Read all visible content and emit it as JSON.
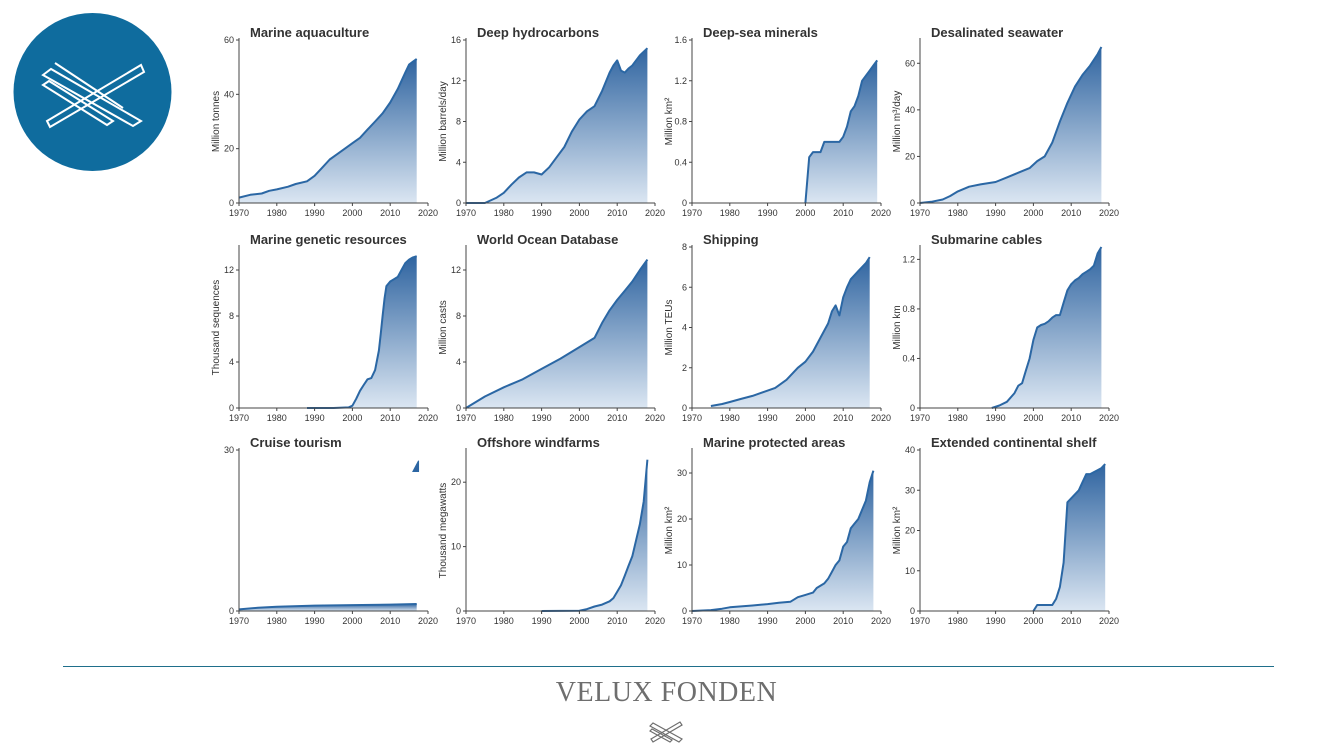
{
  "brand": {
    "name": "VELUX FONDEN",
    "logo_icon": "crossed-lines-icon",
    "logo_color": "#0f6c9e",
    "divider_color": "#1f6f8b",
    "name_color": "#6e6e6e"
  },
  "chart_style": {
    "line_color": "#2b67a4",
    "fill_top_color": "#2f64a0",
    "fill_bottom_color": "#dbe6f2",
    "axis_color": "#444444"
  },
  "chart_data": [
    {
      "type": "area",
      "title": "Marine aquaculture",
      "ylabel": "Million tonnes",
      "xlim": [
        1970,
        2020
      ],
      "ylim": [
        0,
        60
      ],
      "xticks": [
        1970,
        1980,
        1990,
        2000,
        2010,
        2020
      ],
      "yticks": [
        0,
        20,
        40,
        60
      ],
      "series": [
        {
          "x": [
            1970,
            1973,
            1976,
            1978,
            1980,
            1983,
            1985,
            1988,
            1990,
            1992,
            1994,
            1996,
            1998,
            2000,
            2002,
            2004,
            2006,
            2008,
            2010,
            2012,
            2013,
            2014,
            2015,
            2016,
            2017
          ],
          "y": [
            2,
            3,
            3.5,
            4.5,
            5,
            6,
            7,
            8,
            10,
            13,
            16,
            18,
            20,
            22,
            24,
            27,
            30,
            33,
            37,
            42,
            45,
            48,
            51,
            52,
            53
          ]
        }
      ]
    },
    {
      "type": "area",
      "title": "Deep hydrocarbons",
      "ylabel": "Million barrels/day",
      "xlim": [
        1970,
        2020
      ],
      "ylim": [
        0,
        16
      ],
      "xticks": [
        1970,
        1980,
        1990,
        2000,
        2010,
        2020
      ],
      "yticks": [
        0,
        4,
        8,
        12,
        16
      ],
      "series": [
        {
          "x": [
            1970,
            1975,
            1978,
            1980,
            1982,
            1984,
            1986,
            1988,
            1990,
            1992,
            1994,
            1996,
            1998,
            2000,
            2002,
            2004,
            2006,
            2008,
            2009,
            2010,
            2011,
            2012,
            2013,
            2014,
            2016,
            2018
          ],
          "y": [
            0,
            0,
            0.5,
            1,
            1.8,
            2.5,
            3,
            3,
            2.8,
            3.5,
            4.5,
            5.5,
            7,
            8.2,
            9,
            9.5,
            11,
            12.8,
            13.5,
            14,
            13,
            12.8,
            13.2,
            13.5,
            14.5,
            15.2
          ]
        }
      ]
    },
    {
      "type": "area",
      "title": "Deep-sea minerals",
      "ylabel": "Million km²",
      "xlim": [
        1970,
        2020
      ],
      "ylim": [
        0,
        1.6
      ],
      "xticks": [
        1970,
        1980,
        1990,
        2000,
        2010,
        2020
      ],
      "yticks": [
        0,
        0.4,
        0.8,
        1.2,
        1.6
      ],
      "series": [
        {
          "x": [
            2000,
            2001,
            2002,
            2004,
            2005,
            2006,
            2008,
            2009,
            2010,
            2011,
            2012,
            2013,
            2014,
            2015,
            2016,
            2017,
            2018,
            2019
          ],
          "y": [
            0,
            0.45,
            0.5,
            0.5,
            0.6,
            0.6,
            0.6,
            0.6,
            0.65,
            0.75,
            0.9,
            0.95,
            1.05,
            1.2,
            1.25,
            1.3,
            1.35,
            1.4
          ]
        }
      ]
    },
    {
      "type": "area",
      "title": "Desalinated seawater",
      "ylabel": "Million m³/day",
      "xlim": [
        1970,
        2020
      ],
      "ylim": [
        0,
        70
      ],
      "xticks": [
        1970,
        1980,
        1990,
        2000,
        2010,
        2020
      ],
      "yticks": [
        0,
        20,
        40,
        60
      ],
      "series": [
        {
          "x": [
            1970,
            1973,
            1976,
            1978,
            1980,
            1983,
            1986,
            1990,
            1993,
            1996,
            1999,
            2001,
            2003,
            2005,
            2007,
            2009,
            2011,
            2013,
            2015,
            2017,
            2018
          ],
          "y": [
            0,
            0.5,
            1.5,
            3,
            5,
            7,
            8,
            9,
            11,
            13,
            15,
            18,
            20,
            26,
            35,
            43,
            50,
            55,
            59,
            64,
            67
          ]
        }
      ]
    },
    {
      "type": "area",
      "title": "Marine genetic resources",
      "ylabel": "Thousand sequences",
      "xlim": [
        1970,
        2020
      ],
      "ylim": [
        0,
        14
      ],
      "xticks": [
        1970,
        1980,
        1990,
        2000,
        2010,
        2020
      ],
      "yticks": [
        0,
        4,
        8,
        12
      ],
      "series": [
        {
          "x": [
            1988,
            1995,
            1999,
            2000,
            2001,
            2002,
            2003,
            2004,
            2005,
            2006,
            2007,
            2007.5,
            2008,
            2008.5,
            2009,
            2010,
            2011,
            2012,
            2013,
            2014,
            2015,
            2016,
            2017
          ],
          "y": [
            0,
            0,
            0.05,
            0.2,
            0.8,
            1.5,
            2,
            2.5,
            2.6,
            3.3,
            5,
            6.5,
            8,
            9.5,
            10.6,
            11,
            11.2,
            11.4,
            12,
            12.6,
            12.9,
            13.1,
            13.2
          ]
        }
      ]
    },
    {
      "type": "area",
      "title": "World Ocean Database",
      "ylabel": "Million casts",
      "xlim": [
        1970,
        2020
      ],
      "ylim": [
        0,
        14
      ],
      "xticks": [
        1970,
        1980,
        1990,
        2000,
        2010,
        2020
      ],
      "yticks": [
        0,
        4,
        8,
        12
      ],
      "series": [
        {
          "x": [
            1970,
            1975,
            1980,
            1985,
            1990,
            1995,
            2000,
            2004,
            2006,
            2008,
            2010,
            2012,
            2014,
            2016,
            2018
          ],
          "y": [
            0,
            1,
            1.8,
            2.5,
            3.4,
            4.3,
            5.3,
            6.1,
            7.4,
            8.5,
            9.4,
            10.2,
            11,
            12,
            12.9
          ]
        }
      ]
    },
    {
      "type": "area",
      "title": "Shipping",
      "ylabel": "Million TEUs",
      "xlim": [
        1970,
        2020
      ],
      "ylim": [
        0,
        8
      ],
      "xticks": [
        1970,
        1980,
        1990,
        2000,
        2010,
        2020
      ],
      "yticks": [
        0,
        2,
        4,
        6,
        8
      ],
      "series": [
        {
          "x": [
            1975,
            1978,
            1980,
            1983,
            1986,
            1989,
            1992,
            1995,
            1998,
            2000,
            2002,
            2004,
            2006,
            2007,
            2008,
            2009,
            2010,
            2011,
            2012,
            2013,
            2014,
            2015,
            2016,
            2017
          ],
          "y": [
            0.1,
            0.2,
            0.3,
            0.45,
            0.6,
            0.8,
            1.0,
            1.4,
            2.0,
            2.3,
            2.8,
            3.5,
            4.2,
            4.8,
            5.1,
            4.6,
            5.5,
            6.0,
            6.4,
            6.6,
            6.8,
            7.0,
            7.2,
            7.5
          ]
        }
      ]
    },
    {
      "type": "area",
      "title": "Submarine cables",
      "ylabel": "Million km",
      "xlim": [
        1970,
        2020
      ],
      "ylim": [
        0,
        1.3
      ],
      "xticks": [
        1970,
        1980,
        1990,
        2000,
        2010,
        2020
      ],
      "yticks": [
        0,
        0.4,
        0.8,
        1.2
      ],
      "series": [
        {
          "x": [
            1989,
            1991,
            1993,
            1995,
            1996,
            1997,
            1998,
            1999,
            2000,
            2001,
            2002,
            2003,
            2004,
            2005,
            2006,
            2007,
            2008,
            2009,
            2010,
            2011,
            2012,
            2013,
            2014,
            2015,
            2016,
            2017,
            2018
          ],
          "y": [
            0,
            0.02,
            0.05,
            0.12,
            0.18,
            0.2,
            0.3,
            0.4,
            0.55,
            0.65,
            0.67,
            0.68,
            0.7,
            0.73,
            0.75,
            0.75,
            0.85,
            0.95,
            1.0,
            1.03,
            1.05,
            1.08,
            1.1,
            1.12,
            1.15,
            1.25,
            1.3
          ]
        }
      ]
    },
    {
      "type": "area",
      "title": "Cruise tourism",
      "ylabel": "",
      "xlim": [
        1970,
        2020
      ],
      "ylim": [
        0,
        30
      ],
      "xticks": [
        1970,
        1980,
        1990,
        2000,
        2010,
        2020
      ],
      "yticks": [
        0,
        30
      ],
      "series": [
        {
          "x": [
            1970,
            1975,
            1980,
            1990,
            2000,
            2010,
            2017
          ],
          "y": [
            0.3,
            0.6,
            0.8,
            1.0,
            1.1,
            1.2,
            1.3
          ]
        }
      ],
      "fragment": {
        "x": [
          2016,
          2017.5
        ],
        "y": [
          26,
          28
        ]
      }
    },
    {
      "type": "area",
      "title": "Offshore windfarms",
      "ylabel": "Thousand megawatts",
      "xlim": [
        1970,
        2020
      ],
      "ylim": [
        0,
        25
      ],
      "xticks": [
        1970,
        1980,
        1990,
        2000,
        2010,
        2020
      ],
      "yticks": [
        0,
        10,
        20
      ],
      "series": [
        {
          "x": [
            1990,
            1995,
            2000,
            2002,
            2004,
            2006,
            2008,
            2009,
            2010,
            2011,
            2012,
            2013,
            2014,
            2015,
            2016,
            2017,
            2018
          ],
          "y": [
            0,
            0.02,
            0.05,
            0.3,
            0.7,
            1.0,
            1.5,
            2.0,
            3.0,
            4.0,
            5.5,
            7.0,
            8.5,
            11,
            13.5,
            17,
            23.5
          ]
        }
      ]
    },
    {
      "type": "area",
      "title": "Marine protected areas",
      "ylabel": "Million km²",
      "xlim": [
        1970,
        2020
      ],
      "ylim": [
        0,
        35
      ],
      "xticks": [
        1970,
        1980,
        1990,
        2000,
        2010,
        2020
      ],
      "yticks": [
        0,
        10,
        20,
        30
      ],
      "series": [
        {
          "x": [
            1970,
            1975,
            1978,
            1980,
            1983,
            1986,
            1990,
            1993,
            1996,
            1998,
            2000,
            2002,
            2003,
            2005,
            2006,
            2007,
            2008,
            2009,
            2010,
            2011,
            2012,
            2013,
            2014,
            2015,
            2016,
            2017,
            2018
          ],
          "y": [
            0,
            0.2,
            0.5,
            0.8,
            1.0,
            1.2,
            1.5,
            1.8,
            2.0,
            3.0,
            3.5,
            4.0,
            5.0,
            6.0,
            7.0,
            8.5,
            10,
            11,
            14,
            15,
            18,
            19,
            20,
            22,
            24,
            28,
            30.5
          ]
        }
      ]
    },
    {
      "type": "area",
      "title": "Extended continental shelf",
      "ylabel": "Million km²",
      "xlim": [
        1970,
        2020
      ],
      "ylim": [
        0,
        40
      ],
      "xticks": [
        1970,
        1980,
        1990,
        2000,
        2010,
        2020
      ],
      "yticks": [
        0,
        10,
        20,
        30,
        40
      ],
      "series": [
        {
          "x": [
            2000,
            2001,
            2002,
            2003,
            2004,
            2005,
            2006,
            2007,
            2008,
            2009,
            2010,
            2011,
            2012,
            2013,
            2014,
            2015,
            2016,
            2017,
            2018,
            2019
          ],
          "y": [
            0,
            1.5,
            1.5,
            1.5,
            1.5,
            1.5,
            3,
            6,
            12,
            27,
            28,
            29,
            30,
            32,
            34,
            34,
            34.5,
            35,
            35.5,
            36.5
          ]
        }
      ]
    }
  ]
}
